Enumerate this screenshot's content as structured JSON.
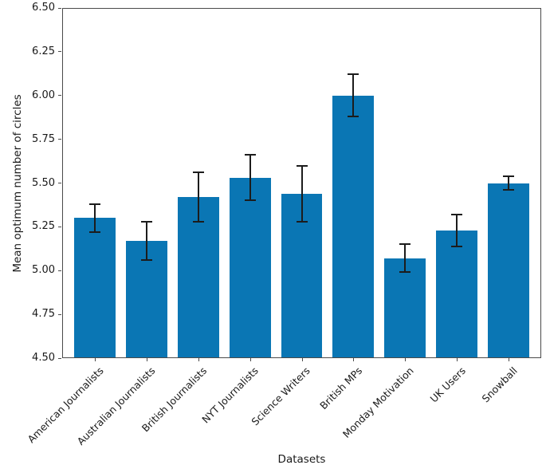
{
  "chart_data": {
    "type": "bar",
    "title": "",
    "xlabel": "Datasets",
    "ylabel": "Mean optimum number of circles",
    "categories": [
      "American Journalists",
      "Australian Journalists",
      "British Journalists",
      "NYT Journalists",
      "Science Writers",
      "British MPs",
      "Monday Motivation",
      "UK Users",
      "Snowball"
    ],
    "values": [
      5.3,
      5.17,
      5.42,
      5.53,
      5.44,
      6.0,
      5.07,
      5.23,
      5.5
    ],
    "errors": [
      0.08,
      0.11,
      0.14,
      0.13,
      0.16,
      0.12,
      0.08,
      0.09,
      0.04
    ],
    "ylim": [
      4.5,
      6.5
    ],
    "yticks": [
      4.5,
      4.75,
      5.0,
      5.25,
      5.5,
      5.75,
      6.0,
      6.25,
      6.5
    ],
    "ytick_labels": [
      "4.50",
      "4.75",
      "5.00",
      "5.25",
      "5.50",
      "5.75",
      "6.00",
      "6.25",
      "6.50"
    ],
    "xlim": [
      -0.63,
      8.63
    ],
    "bar_width_units": 0.8,
    "xtick_rotation": 45,
    "grid": false,
    "legend": null,
    "bar_color": "#0a76b4",
    "error_color": "#1c1c1c",
    "spine_color": "#4a4a4a"
  }
}
